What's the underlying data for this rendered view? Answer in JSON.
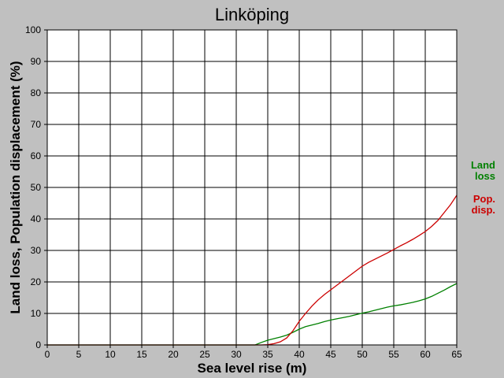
{
  "chart_data": {
    "type": "line",
    "title": "Linköping",
    "xlabel": "Sea level rise (m)",
    "ylabel": "Land loss, Population displacement (%)",
    "xlim": [
      0,
      65
    ],
    "ylim": [
      0,
      100
    ],
    "xticks": [
      0,
      5,
      10,
      15,
      20,
      25,
      30,
      35,
      40,
      45,
      50,
      55,
      60,
      65
    ],
    "yticks": [
      0,
      10,
      20,
      30,
      40,
      50,
      60,
      70,
      80,
      90,
      100
    ],
    "grid": true,
    "legend_position": "right",
    "series": [
      {
        "name": "Land loss",
        "legend_lines": [
          "Land",
          "loss"
        ],
        "color": "#008000",
        "x": [
          0,
          33,
          34,
          35,
          36,
          37,
          38,
          39,
          40,
          41,
          42,
          43,
          44,
          45,
          46,
          47,
          48,
          49,
          50,
          51,
          52,
          53,
          54,
          55,
          56,
          57,
          58,
          59,
          60,
          61,
          62,
          63,
          64,
          65
        ],
        "y": [
          0,
          0,
          0.8,
          1.5,
          2.0,
          2.5,
          3.1,
          4.0,
          5.0,
          5.8,
          6.3,
          6.8,
          7.4,
          7.9,
          8.3,
          8.7,
          9.1,
          9.6,
          10.1,
          10.5,
          11.0,
          11.5,
          12.0,
          12.4,
          12.7,
          13.1,
          13.5,
          14.0,
          14.6,
          15.4,
          16.4,
          17.4,
          18.5,
          19.5
        ]
      },
      {
        "name": "Pop. disp.",
        "legend_lines": [
          "Pop.",
          "disp."
        ],
        "color": "#cc0000",
        "x": [
          0,
          34,
          35,
          36,
          37,
          38,
          39,
          40,
          41,
          42,
          43,
          44,
          45,
          46,
          47,
          48,
          49,
          50,
          51,
          52,
          53,
          54,
          55,
          56,
          57,
          58,
          59,
          60,
          61,
          62,
          63,
          64,
          65
        ],
        "y": [
          0,
          0,
          0.1,
          0.4,
          1.0,
          2.2,
          4.5,
          7.5,
          10.0,
          12.3,
          14.3,
          16.0,
          17.5,
          19.0,
          20.5,
          22.0,
          23.5,
          25.0,
          26.2,
          27.2,
          28.2,
          29.2,
          30.3,
          31.4,
          32.4,
          33.5,
          34.7,
          36.0,
          37.6,
          39.5,
          42.0,
          44.5,
          47.5
        ]
      }
    ]
  }
}
